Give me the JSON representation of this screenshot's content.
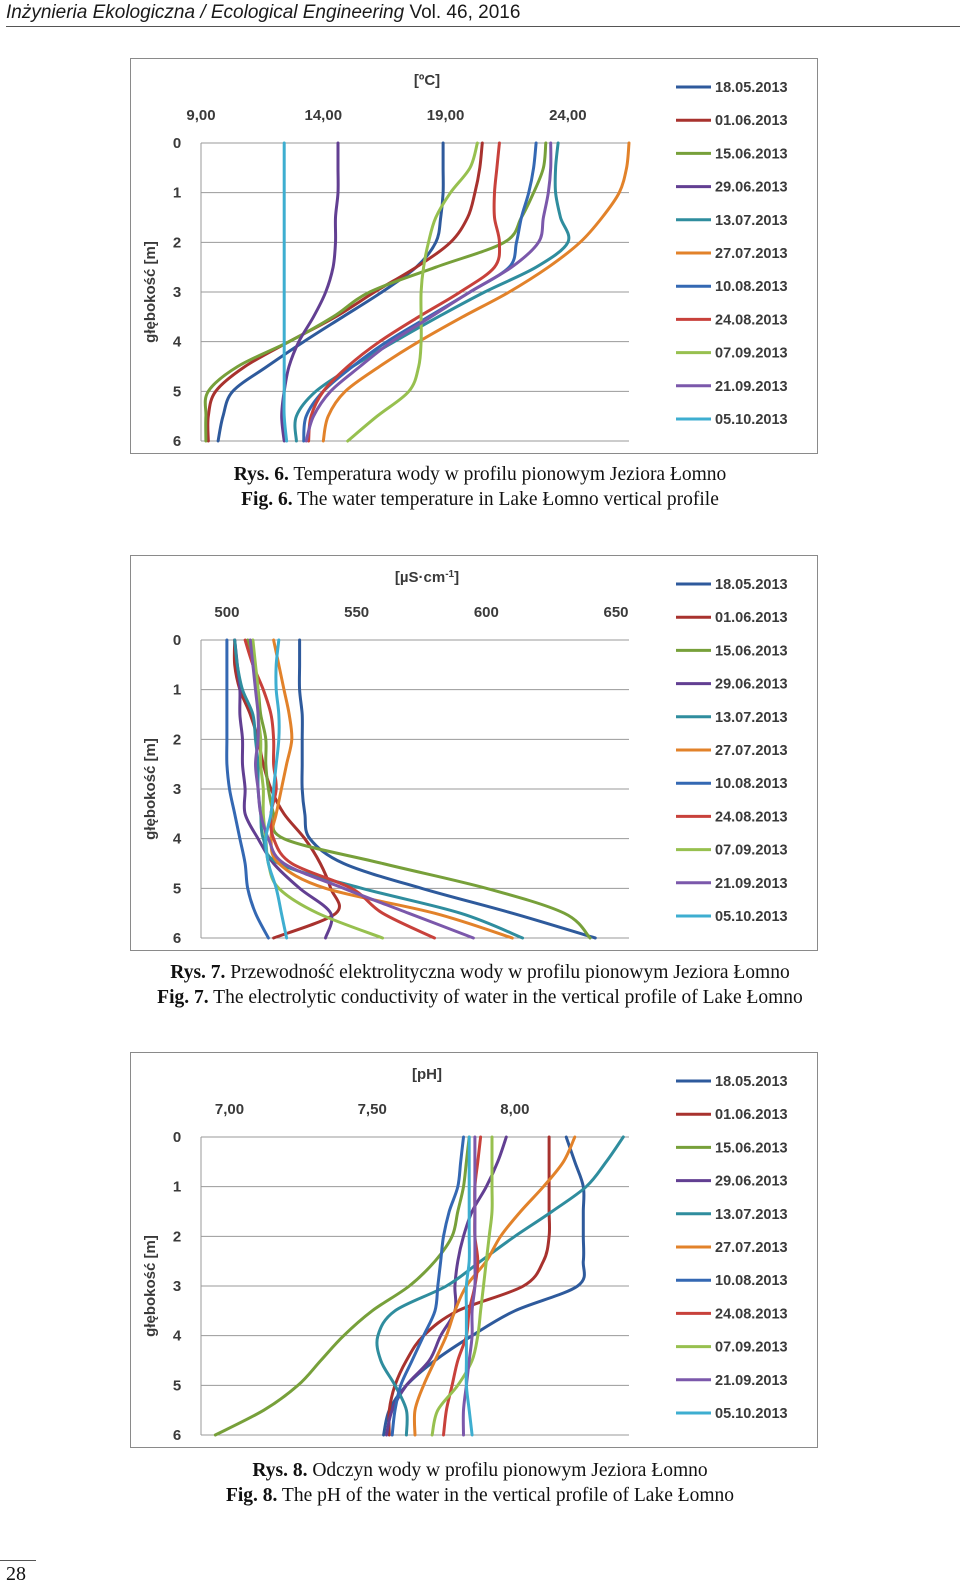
{
  "running_head": {
    "journal": "Inżynieria Ekologiczna / Ecological Engineering",
    "volume": " Vol. 46, 2016"
  },
  "page_number": "28",
  "legend_colors": [
    "#2e5a9c",
    "#a8322e",
    "#77a03a",
    "#623f92",
    "#2f8d9e",
    "#e2822a",
    "#3468b3",
    "#c8413b",
    "#97c04f",
    "#7b58ab",
    "#3eaed0"
  ],
  "figures": [
    {
      "caption_pl_label": "Rys. 6.",
      "caption_pl_text": " Temperatura wody w profilu pionowym Jeziora Łomno",
      "caption_en_label": "Fig. 6.",
      "caption_en_text": " The water temperature in Lake Łomno vertical profile"
    },
    {
      "caption_pl_label": "Rys. 7.",
      "caption_pl_text": " Przewodność elektrolityczna wody w profilu pionowym Jeziora Łomno",
      "caption_en_label": "Fig. 7.",
      "caption_en_text": " The electrolytic conductivity of water in the vertical profile of Lake Łomno"
    },
    {
      "caption_pl_label": "Rys. 8.",
      "caption_pl_text": " Odczyn wody w profilu pionowym Jeziora Łomno",
      "caption_en_label": "Fig. 8.",
      "caption_en_text": " The pH of the water in the vertical profile of Lake Łomno"
    }
  ],
  "chart_data": [
    {
      "type": "line",
      "unit_label": "[ºC]",
      "ylabel": "głębokość [m]",
      "x_ticks": [
        "9,00",
        "14,00",
        "19,00",
        "24,00"
      ],
      "x_tick_values": [
        9,
        14,
        19,
        24
      ],
      "xlim": [
        9,
        26.5
      ],
      "y_ticks": [
        "0",
        "1",
        "2",
        "3",
        "4",
        "5",
        "6"
      ],
      "ylim": [
        0,
        6
      ],
      "y_inverted": true,
      "grid": true,
      "legend_position": "right",
      "depths": [
        0,
        0.5,
        1,
        1.5,
        2,
        2.5,
        3,
        3.5,
        4,
        4.5,
        5,
        5.5,
        6
      ],
      "series": [
        {
          "name": "18.05.2013",
          "values": [
            18.9,
            18.9,
            18.9,
            18.8,
            18.6,
            17.8,
            16.4,
            14.8,
            13.2,
            11.7,
            10.3,
            9.9,
            9.7
          ]
        },
        {
          "name": "01.06.2013",
          "values": [
            20.5,
            20.4,
            20.2,
            19.9,
            19.2,
            17.8,
            16.1,
            14.5,
            12.6,
            10.8,
            9.6,
            9.3,
            9.3
          ]
        },
        {
          "name": "15.06.2013",
          "values": [
            23.1,
            23.0,
            22.6,
            22.1,
            21.4,
            18.6,
            15.9,
            14.4,
            12.6,
            10.5,
            9.3,
            9.2,
            9.2
          ]
        },
        {
          "name": "29.06.2013",
          "values": [
            14.6,
            14.6,
            14.6,
            14.5,
            14.5,
            14.4,
            14.1,
            13.6,
            13.0,
            12.6,
            12.4,
            12.3,
            12.4
          ]
        },
        {
          "name": "13.07.2013",
          "values": [
            23.6,
            23.5,
            23.5,
            23.7,
            24.0,
            22.7,
            20.6,
            18.7,
            16.9,
            15.2,
            13.7,
            12.9,
            12.9
          ]
        },
        {
          "name": "27.07.2013",
          "values": [
            26.5,
            26.4,
            26.1,
            25.4,
            24.5,
            23.2,
            21.6,
            19.7,
            17.9,
            16.3,
            14.9,
            14.2,
            14.0
          ]
        },
        {
          "name": "10.08.2013",
          "values": [
            22.7,
            22.6,
            22.4,
            22.1,
            21.9,
            21.6,
            20.0,
            18.3,
            16.6,
            15.2,
            14.0,
            13.3,
            13.2
          ]
        },
        {
          "name": "24.08.2013",
          "values": [
            21.2,
            21.1,
            21.0,
            21.0,
            21.2,
            21.0,
            19.6,
            17.9,
            16.3,
            15.0,
            14.0,
            13.5,
            13.4
          ]
        },
        {
          "name": "07.09.2013",
          "values": [
            20.3,
            20.0,
            19.2,
            18.6,
            18.3,
            18.1,
            18.0,
            18.0,
            18.0,
            17.9,
            17.5,
            16.2,
            15.0
          ]
        },
        {
          "name": "21.09.2013",
          "values": [
            23.3,
            23.3,
            23.2,
            23.0,
            22.8,
            21.7,
            20.0,
            18.4,
            16.8,
            15.5,
            14.3,
            13.6,
            13.3
          ]
        },
        {
          "name": "05.10.2013",
          "values": [
            12.4,
            12.4,
            12.4,
            12.4,
            12.4,
            12.4,
            12.4,
            12.4,
            12.4,
            12.4,
            12.4,
            12.4,
            12.5
          ]
        }
      ]
    },
    {
      "type": "line",
      "unit_label": "[µS·cm",
      "unit_sup": "-1",
      "unit_end": "]",
      "ylabel": "głębokość [m]",
      "x_ticks": [
        "500",
        "550",
        "600",
        "650"
      ],
      "x_tick_values": [
        500,
        550,
        600,
        650
      ],
      "xlim": [
        490,
        655
      ],
      "y_ticks": [
        "0",
        "1",
        "2",
        "3",
        "4",
        "5",
        "6"
      ],
      "ylim": [
        0,
        6
      ],
      "y_inverted": true,
      "grid": true,
      "legend_position": "right",
      "depths": [
        0,
        0.5,
        1,
        1.5,
        2,
        2.5,
        3,
        3.5,
        4,
        4.5,
        5,
        5.5,
        6
      ],
      "series": [
        {
          "name": "18.05.2013",
          "values": [
            528,
            528,
            528,
            529,
            529,
            529,
            529,
            530,
            532,
            545,
            575,
            610,
            642
          ]
        },
        {
          "name": "01.06.2013",
          "values": [
            503,
            503,
            505,
            509,
            512,
            514,
            517,
            522,
            530,
            536,
            540,
            542,
            518
          ]
        },
        {
          "name": "15.06.2013",
          "values": [
            508,
            510,
            512,
            513,
            515,
            515,
            516,
            518,
            522,
            560,
            600,
            630,
            640
          ]
        },
        {
          "name": "29.06.2013",
          "values": [
            503,
            504,
            505,
            505,
            506,
            506,
            507,
            507,
            512,
            518,
            528,
            540,
            538
          ]
        },
        {
          "name": "13.07.2013",
          "values": [
            503,
            504,
            506,
            510,
            511,
            512,
            512,
            513,
            514,
            520,
            552,
            590,
            614
          ]
        },
        {
          "name": "27.07.2013",
          "values": [
            518,
            520,
            522,
            524,
            525,
            523,
            521,
            519,
            517,
            520,
            538,
            580,
            610
          ]
        },
        {
          "name": "10.08.2013",
          "values": [
            500,
            500,
            500,
            500,
            500,
            500,
            501,
            503,
            505,
            507,
            508,
            511,
            516
          ]
        },
        {
          "name": "24.08.2013",
          "values": [
            507,
            510,
            514,
            517,
            518,
            518,
            519,
            517,
            518,
            525,
            548,
            560,
            580
          ]
        },
        {
          "name": "07.09.2013",
          "values": [
            510,
            511,
            512,
            512,
            513,
            513,
            514,
            514,
            515,
            516,
            520,
            535,
            560
          ]
        },
        {
          "name": "21.09.2013",
          "values": [
            509,
            510,
            511,
            512,
            512,
            511,
            512,
            513,
            516,
            522,
            545,
            570,
            595
          ]
        },
        {
          "name": "05.10.2013",
          "values": [
            520,
            519,
            519,
            520,
            520,
            519,
            518,
            517,
            515,
            516,
            519,
            521,
            523
          ]
        }
      ]
    },
    {
      "type": "line",
      "unit_label": "[pH]",
      "ylabel": "głębokość [m]",
      "x_ticks": [
        "7,00",
        "7,50",
        "8,00"
      ],
      "x_tick_values": [
        7.0,
        7.5,
        8.0
      ],
      "xlim": [
        6.9,
        8.4
      ],
      "y_ticks": [
        "0",
        "1",
        "2",
        "3",
        "4",
        "5",
        "6"
      ],
      "ylim": [
        0,
        6
      ],
      "y_inverted": true,
      "grid": true,
      "legend_position": "right",
      "depths": [
        0,
        0.5,
        1,
        1.5,
        2,
        2.5,
        3,
        3.5,
        4,
        4.5,
        5,
        5.5,
        6
      ],
      "series": [
        {
          "name": "18.05.2013",
          "values": [
            8.18,
            8.21,
            8.24,
            8.24,
            8.24,
            8.24,
            8.22,
            8.0,
            7.85,
            7.72,
            7.62,
            7.56,
            7.54
          ]
        },
        {
          "name": "01.06.2013",
          "values": [
            8.12,
            8.12,
            8.12,
            8.12,
            8.12,
            8.1,
            8.03,
            7.8,
            7.68,
            7.62,
            7.58,
            7.56,
            7.56
          ]
        },
        {
          "name": "15.06.2013",
          "values": [
            7.84,
            7.83,
            7.82,
            7.8,
            7.78,
            7.72,
            7.63,
            7.5,
            7.4,
            7.32,
            7.24,
            7.12,
            6.95
          ]
        },
        {
          "name": "29.06.2013",
          "values": [
            7.97,
            7.94,
            7.9,
            7.85,
            7.82,
            7.8,
            7.79,
            7.79,
            7.74,
            7.7,
            7.62,
            7.57,
            7.55
          ]
        },
        {
          "name": "13.07.2013",
          "values": [
            8.38,
            8.32,
            8.25,
            8.13,
            8.0,
            7.88,
            7.76,
            7.58,
            7.52,
            7.53,
            7.58,
            7.62,
            7.62
          ]
        },
        {
          "name": "27.07.2013",
          "values": [
            8.21,
            8.17,
            8.1,
            8.02,
            7.95,
            7.9,
            7.83,
            7.79,
            7.76,
            7.72,
            7.68,
            7.65,
            7.65
          ]
        },
        {
          "name": "10.08.2013",
          "values": [
            7.82,
            7.81,
            7.8,
            7.77,
            7.75,
            7.74,
            7.73,
            7.72,
            7.68,
            7.64,
            7.6,
            7.58,
            7.57
          ]
        },
        {
          "name": "24.08.2013",
          "values": [
            7.88,
            7.87,
            7.86,
            7.86,
            7.86,
            7.87,
            7.86,
            7.84,
            7.83,
            7.8,
            7.78,
            7.76,
            7.75
          ]
        },
        {
          "name": "07.09.2013",
          "values": [
            7.92,
            7.92,
            7.92,
            7.92,
            7.91,
            7.9,
            7.89,
            7.88,
            7.87,
            7.85,
            7.8,
            7.73,
            7.71
          ]
        },
        {
          "name": "21.09.2013",
          "values": [
            7.86,
            7.86,
            7.86,
            7.86,
            7.86,
            7.86,
            7.86,
            7.85,
            7.85,
            7.84,
            7.83,
            7.82,
            7.82
          ]
        },
        {
          "name": "05.10.2013",
          "values": [
            7.84,
            7.84,
            7.84,
            7.84,
            7.84,
            7.84,
            7.83,
            7.83,
            7.83,
            7.83,
            7.83,
            7.84,
            7.85
          ]
        }
      ]
    }
  ]
}
